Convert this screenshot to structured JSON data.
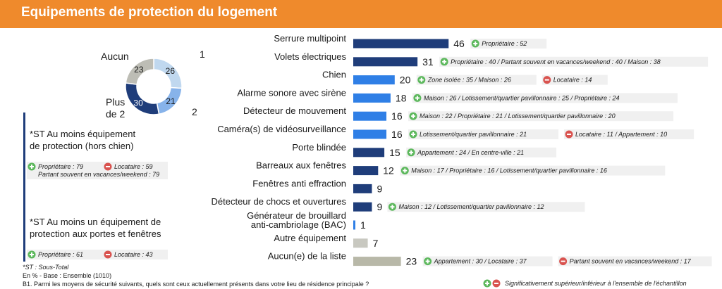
{
  "header": {
    "title": "Equipements de protection du logement"
  },
  "chart_data": [
    {
      "type": "pie",
      "segments": [
        {
          "label": "1",
          "value": 26,
          "color": "#c0d8ef"
        },
        {
          "label": "2",
          "value": 21,
          "color": "#87b3ea"
        },
        {
          "label": "Plus de 2",
          "value": 30,
          "color": "#1f3d7a"
        },
        {
          "label": "Aucun",
          "value": 23,
          "color": "#bdbdb5"
        }
      ]
    },
    {
      "type": "bar",
      "xlim": [
        0,
        50
      ],
      "categories": [
        "Serrure multipoint",
        "Volets électriques",
        "Chien",
        "Alarme sonore avec sirène",
        "Détecteur de mouvement",
        "Caméra(s) de vidéosurveillance",
        "Porte blindée",
        "Barreaux aux fenêtres",
        "Fenêtres anti effraction",
        "Détecteur de chocs et ouvertures",
        "Générateur de brouillard anti-cambriolage (BAC)",
        "Autre équipement",
        "Aucun(e) de la liste"
      ],
      "label_lines": [
        [
          "Serrure multipoint"
        ],
        [
          "Volets électriques"
        ],
        [
          "Chien"
        ],
        [
          "Alarme sonore avec sirène"
        ],
        [
          "Détecteur de mouvement"
        ],
        [
          "Caméra(s) de vidéosurveillance"
        ],
        [
          "Porte blindée"
        ],
        [
          "Barreaux aux fenêtres"
        ],
        [
          "Fenêtres anti effraction"
        ],
        [
          "Détecteur de chocs et ouvertures"
        ],
        [
          "Générateur de brouillard",
          "anti-cambriolage (BAC)"
        ],
        [
          "Autre équipement"
        ],
        [
          "Aucun(e) de la liste"
        ]
      ],
      "values": [
        46,
        31,
        20,
        18,
        16,
        16,
        15,
        12,
        9,
        9,
        1,
        7,
        23
      ],
      "bar_colors": [
        "#1f3d7a",
        "#1f3d7a",
        "#2f7fe6",
        "#2f7fe6",
        "#2f7fe6",
        "#2f7fe6",
        "#1f3d7a",
        "#1f3d7a",
        "#1f3d7a",
        "#1f3d7a",
        "#2f7fe6",
        "#c8c8c0",
        "#b8b8a8"
      ],
      "annotations": [
        [
          {
            "sign": "plus",
            "text": "Propriétaire : 52"
          }
        ],
        [
          {
            "sign": "plus",
            "text": "Propriétaire : 40 / Partant souvent en vacances/weekend : 40 / Maison : 38"
          }
        ],
        [
          {
            "sign": "plus",
            "text": "Zone isolée : 35 / Maison : 26"
          },
          {
            "sign": "minus",
            "text": "Locataire : 14"
          }
        ],
        [
          {
            "sign": "plus",
            "text": "Maison : 26 / Lotissement/quartier pavillonnaire : 25 / Propriétaire : 24"
          }
        ],
        [
          {
            "sign": "plus",
            "text": "Maison : 22 / Propriétaire : 21 / Lotissement/quartier pavillonnaire : 20"
          }
        ],
        [
          {
            "sign": "plus",
            "text": "Lotissement/quartier pavillonnaire : 21"
          },
          {
            "sign": "minus",
            "text": "Locataire : 11 / Appartement : 10"
          }
        ],
        [
          {
            "sign": "plus",
            "text": "Appartement : 24 / En centre-ville : 21"
          }
        ],
        [
          {
            "sign": "plus",
            "text": "Maison : 17 / Propriétaire : 16 / Lotissement/quartier pavillonnaire : 16"
          }
        ],
        [],
        [
          {
            "sign": "plus",
            "text": "Maison : 12 / Lotissement/quartier pavillonnaire : 12"
          }
        ],
        [],
        [],
        [
          {
            "sign": "plus",
            "text": "Appartement : 30 / Locataire : 37"
          },
          {
            "sign": "minus",
            "text": "Partant souvent en vacances/weekend : 17"
          }
        ]
      ]
    }
  ],
  "subtotals": [
    {
      "title_lines": [
        "*ST Au moins équipement",
        "de protection (hors chien)"
      ],
      "badges": [
        {
          "sign": "plus",
          "text": "Propriétaire : 79"
        },
        {
          "sign": "minus",
          "text": "Locataire : 59"
        }
      ],
      "extra_line": "Partant souvent en vacances/weekend : 79"
    },
    {
      "title_lines": [
        "*ST Au moins un équipement de",
        "protection aux portes et fenêtres"
      ],
      "badges": [
        {
          "sign": "plus",
          "text": "Propriétaire : 61"
        },
        {
          "sign": "minus",
          "text": "Locataire : 43"
        }
      ],
      "extra_line": ""
    }
  ],
  "footer": {
    "st_note": "*ST : Sous-Total",
    "base": "En % - Base : Ensemble (1010)",
    "question": "B1. Parmi les moyens de sécurité suivants, quels sont ceux actuellement présents dans votre lieu de résidence principale ?",
    "legend": "Significativement supérieur/inférieur à l'ensemble de l'échantillon"
  },
  "colors": {
    "accent": "#ef8a2c",
    "plus": "#5cb85c",
    "minus": "#d9534f",
    "navy": "#1f3d7a"
  },
  "icons": {
    "plus": "plus-circle-icon",
    "minus": "minus-circle-icon"
  }
}
